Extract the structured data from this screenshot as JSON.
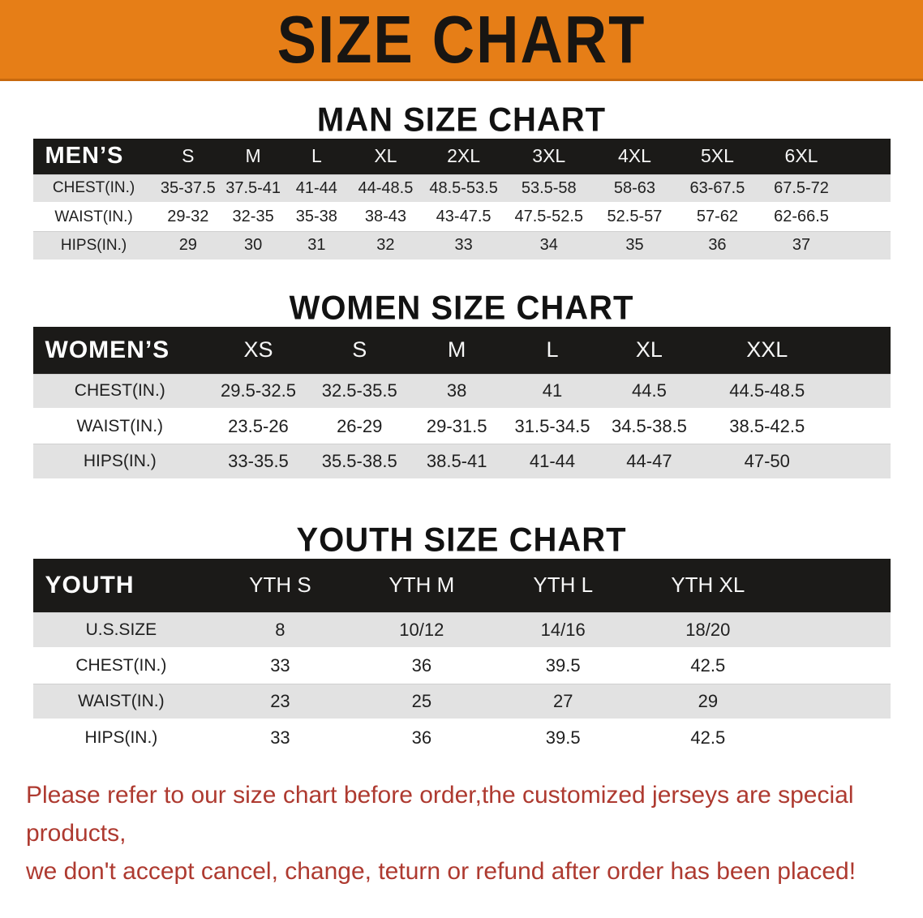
{
  "banner": {
    "title": "SIZE CHART"
  },
  "colors": {
    "banner_bg": "#E67E17",
    "banner_edge": "#c8690e",
    "header_bar": "#1b1a18",
    "row_alt_gray": "#e2e2e2",
    "note_red": "#AE3A30"
  },
  "tables": {
    "men": {
      "heading": "MAN SIZE CHART",
      "corner_label": "MEN’S",
      "columns": [
        "S",
        "M",
        "L",
        "XL",
        "2XL",
        "3XL",
        "4XL",
        "5XL",
        "6XL"
      ],
      "rows": [
        {
          "label": "CHEST(IN.)",
          "values": [
            "35-37.5",
            "37.5-41",
            "41-44",
            "44-48.5",
            "48.5-53.5",
            "53.5-58",
            "58-63",
            "63-67.5",
            "67.5-72"
          ]
        },
        {
          "label": "WAIST(IN.)",
          "values": [
            "29-32",
            "32-35",
            "35-38",
            "38-43",
            "43-47.5",
            "47.5-52.5",
            "52.5-57",
            "57-62",
            "62-66.5"
          ]
        },
        {
          "label": "HIPS(IN.)",
          "values": [
            "29",
            "30",
            "31",
            "32",
            "33",
            "34",
            "35",
            "36",
            "37"
          ]
        }
      ]
    },
    "women": {
      "heading": "WOMEN SIZE CHART",
      "corner_label": "WOMEN’S",
      "columns": [
        "XS",
        "S",
        "M",
        "L",
        "XL",
        "XXL"
      ],
      "rows": [
        {
          "label": "CHEST(IN.)",
          "values": [
            "29.5-32.5",
            "32.5-35.5",
            "38",
            "41",
            "44.5",
            "44.5-48.5"
          ]
        },
        {
          "label": "WAIST(IN.)",
          "values": [
            "23.5-26",
            "26-29",
            "29-31.5",
            "31.5-34.5",
            "34.5-38.5",
            "38.5-42.5"
          ]
        },
        {
          "label": "HIPS(IN.)",
          "values": [
            "33-35.5",
            "35.5-38.5",
            "38.5-41",
            "41-44",
            "44-47",
            "47-50"
          ]
        }
      ]
    },
    "youth": {
      "heading": "YOUTH SIZE CHART",
      "corner_label": "YOUTH",
      "columns": [
        "YTH S",
        "YTH M",
        "YTH L",
        "YTH XL"
      ],
      "rows": [
        {
          "label": "U.S.SIZE",
          "values": [
            "8",
            "10/12",
            "14/16",
            "18/20"
          ]
        },
        {
          "label": "CHEST(IN.)",
          "values": [
            "33",
            "36",
            "39.5",
            "42.5"
          ]
        },
        {
          "label": "WAIST(IN.)",
          "values": [
            "23",
            "25",
            "27",
            "29"
          ]
        },
        {
          "label": "HIPS(IN.)",
          "values": [
            "33",
            "36",
            "39.5",
            "42.5"
          ]
        }
      ]
    }
  },
  "note": {
    "line1": "Please refer to our size chart before order,the customized jerseys are special products,",
    "line2": "we don't accept cancel, change, teturn or refund after order has been placed!"
  }
}
